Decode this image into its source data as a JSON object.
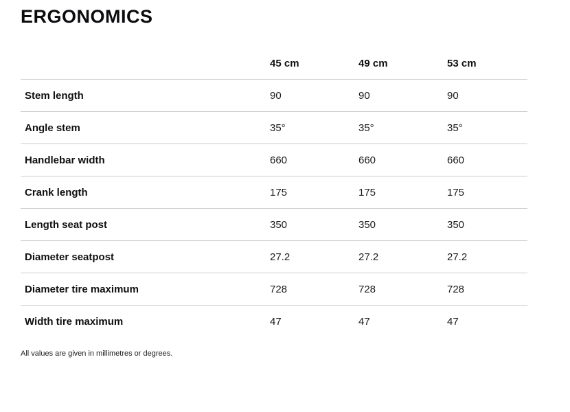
{
  "page": {
    "title": "ERGONOMICS",
    "footnote": "All values are given in millimetres or degrees."
  },
  "colors": {
    "text": "#111111",
    "divider": "#cccccc",
    "background": "#ffffff"
  },
  "table": {
    "columns": [
      "45 cm",
      "49 cm",
      "53 cm"
    ],
    "rows": [
      {
        "label": "Stem length",
        "values": [
          "90",
          "90",
          "90"
        ]
      },
      {
        "label": "Angle stem",
        "values": [
          "35°",
          "35°",
          "35°"
        ]
      },
      {
        "label": "Handlebar width",
        "values": [
          "660",
          "660",
          "660"
        ]
      },
      {
        "label": "Crank length",
        "values": [
          "175",
          "175",
          "175"
        ]
      },
      {
        "label": "Length seat post",
        "values": [
          "350",
          "350",
          "350"
        ]
      },
      {
        "label": "Diameter seatpost",
        "values": [
          "27.2",
          "27.2",
          "27.2"
        ]
      },
      {
        "label": "Diameter tire maximum",
        "values": [
          "728",
          "728",
          "728"
        ]
      },
      {
        "label": "Width tire maximum",
        "values": [
          "47",
          "47",
          "47"
        ]
      }
    ]
  }
}
